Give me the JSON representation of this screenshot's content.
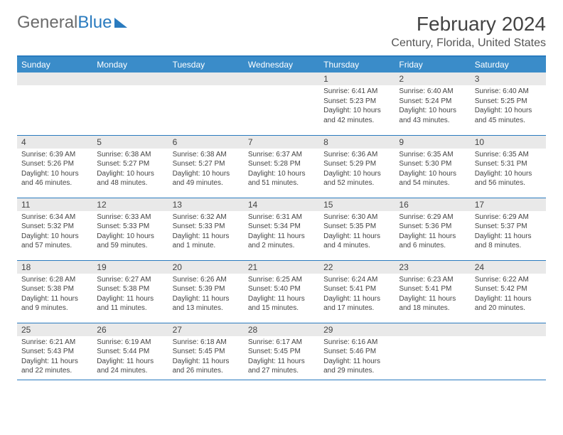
{
  "brand": {
    "part1": "General",
    "part2": "Blue"
  },
  "title": "February 2024",
  "location": "Century, Florida, United States",
  "colors": {
    "header_bg": "#3a8cc9",
    "border": "#2a7bbf",
    "daynum_bg": "#e9e9e9",
    "text": "#444444",
    "bg": "#ffffff"
  },
  "day_headers": [
    "Sunday",
    "Monday",
    "Tuesday",
    "Wednesday",
    "Thursday",
    "Friday",
    "Saturday"
  ],
  "weeks": [
    [
      null,
      null,
      null,
      null,
      {
        "n": "1",
        "sr": "Sunrise: 6:41 AM",
        "ss": "Sunset: 5:23 PM",
        "dl": "Daylight: 10 hours and 42 minutes."
      },
      {
        "n": "2",
        "sr": "Sunrise: 6:40 AM",
        "ss": "Sunset: 5:24 PM",
        "dl": "Daylight: 10 hours and 43 minutes."
      },
      {
        "n": "3",
        "sr": "Sunrise: 6:40 AM",
        "ss": "Sunset: 5:25 PM",
        "dl": "Daylight: 10 hours and 45 minutes."
      }
    ],
    [
      {
        "n": "4",
        "sr": "Sunrise: 6:39 AM",
        "ss": "Sunset: 5:26 PM",
        "dl": "Daylight: 10 hours and 46 minutes."
      },
      {
        "n": "5",
        "sr": "Sunrise: 6:38 AM",
        "ss": "Sunset: 5:27 PM",
        "dl": "Daylight: 10 hours and 48 minutes."
      },
      {
        "n": "6",
        "sr": "Sunrise: 6:38 AM",
        "ss": "Sunset: 5:27 PM",
        "dl": "Daylight: 10 hours and 49 minutes."
      },
      {
        "n": "7",
        "sr": "Sunrise: 6:37 AM",
        "ss": "Sunset: 5:28 PM",
        "dl": "Daylight: 10 hours and 51 minutes."
      },
      {
        "n": "8",
        "sr": "Sunrise: 6:36 AM",
        "ss": "Sunset: 5:29 PM",
        "dl": "Daylight: 10 hours and 52 minutes."
      },
      {
        "n": "9",
        "sr": "Sunrise: 6:35 AM",
        "ss": "Sunset: 5:30 PM",
        "dl": "Daylight: 10 hours and 54 minutes."
      },
      {
        "n": "10",
        "sr": "Sunrise: 6:35 AM",
        "ss": "Sunset: 5:31 PM",
        "dl": "Daylight: 10 hours and 56 minutes."
      }
    ],
    [
      {
        "n": "11",
        "sr": "Sunrise: 6:34 AM",
        "ss": "Sunset: 5:32 PM",
        "dl": "Daylight: 10 hours and 57 minutes."
      },
      {
        "n": "12",
        "sr": "Sunrise: 6:33 AM",
        "ss": "Sunset: 5:33 PM",
        "dl": "Daylight: 10 hours and 59 minutes."
      },
      {
        "n": "13",
        "sr": "Sunrise: 6:32 AM",
        "ss": "Sunset: 5:33 PM",
        "dl": "Daylight: 11 hours and 1 minute."
      },
      {
        "n": "14",
        "sr": "Sunrise: 6:31 AM",
        "ss": "Sunset: 5:34 PM",
        "dl": "Daylight: 11 hours and 2 minutes."
      },
      {
        "n": "15",
        "sr": "Sunrise: 6:30 AM",
        "ss": "Sunset: 5:35 PM",
        "dl": "Daylight: 11 hours and 4 minutes."
      },
      {
        "n": "16",
        "sr": "Sunrise: 6:29 AM",
        "ss": "Sunset: 5:36 PM",
        "dl": "Daylight: 11 hours and 6 minutes."
      },
      {
        "n": "17",
        "sr": "Sunrise: 6:29 AM",
        "ss": "Sunset: 5:37 PM",
        "dl": "Daylight: 11 hours and 8 minutes."
      }
    ],
    [
      {
        "n": "18",
        "sr": "Sunrise: 6:28 AM",
        "ss": "Sunset: 5:38 PM",
        "dl": "Daylight: 11 hours and 9 minutes."
      },
      {
        "n": "19",
        "sr": "Sunrise: 6:27 AM",
        "ss": "Sunset: 5:38 PM",
        "dl": "Daylight: 11 hours and 11 minutes."
      },
      {
        "n": "20",
        "sr": "Sunrise: 6:26 AM",
        "ss": "Sunset: 5:39 PM",
        "dl": "Daylight: 11 hours and 13 minutes."
      },
      {
        "n": "21",
        "sr": "Sunrise: 6:25 AM",
        "ss": "Sunset: 5:40 PM",
        "dl": "Daylight: 11 hours and 15 minutes."
      },
      {
        "n": "22",
        "sr": "Sunrise: 6:24 AM",
        "ss": "Sunset: 5:41 PM",
        "dl": "Daylight: 11 hours and 17 minutes."
      },
      {
        "n": "23",
        "sr": "Sunrise: 6:23 AM",
        "ss": "Sunset: 5:41 PM",
        "dl": "Daylight: 11 hours and 18 minutes."
      },
      {
        "n": "24",
        "sr": "Sunrise: 6:22 AM",
        "ss": "Sunset: 5:42 PM",
        "dl": "Daylight: 11 hours and 20 minutes."
      }
    ],
    [
      {
        "n": "25",
        "sr": "Sunrise: 6:21 AM",
        "ss": "Sunset: 5:43 PM",
        "dl": "Daylight: 11 hours and 22 minutes."
      },
      {
        "n": "26",
        "sr": "Sunrise: 6:19 AM",
        "ss": "Sunset: 5:44 PM",
        "dl": "Daylight: 11 hours and 24 minutes."
      },
      {
        "n": "27",
        "sr": "Sunrise: 6:18 AM",
        "ss": "Sunset: 5:45 PM",
        "dl": "Daylight: 11 hours and 26 minutes."
      },
      {
        "n": "28",
        "sr": "Sunrise: 6:17 AM",
        "ss": "Sunset: 5:45 PM",
        "dl": "Daylight: 11 hours and 27 minutes."
      },
      {
        "n": "29",
        "sr": "Sunrise: 6:16 AM",
        "ss": "Sunset: 5:46 PM",
        "dl": "Daylight: 11 hours and 29 minutes."
      },
      null,
      null
    ]
  ]
}
